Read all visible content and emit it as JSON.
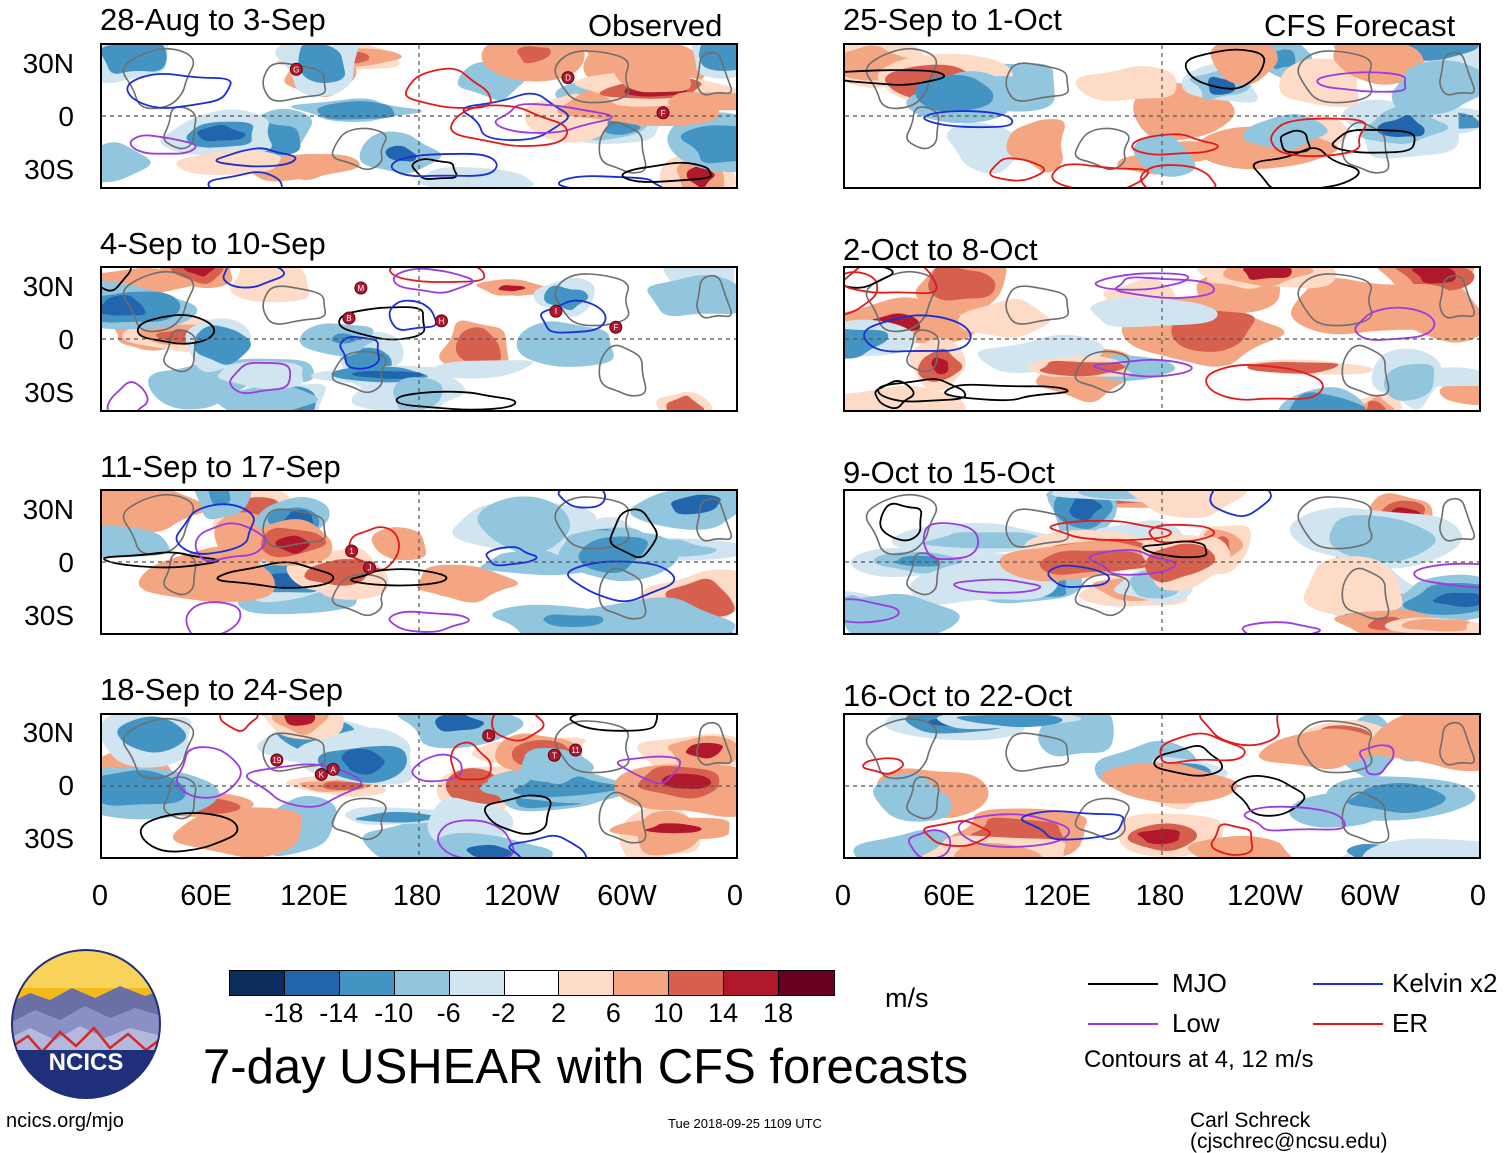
{
  "observed_label": "Observed",
  "forecast_label": "CFS Forecast",
  "observed_panels": [
    {
      "title": "28-Aug to 3-Sep",
      "storms": [
        "D",
        "G",
        "F"
      ]
    },
    {
      "title": "4-Sep to 10-Sep",
      "storms": [
        "B",
        "M",
        "F",
        "I",
        "H"
      ]
    },
    {
      "title": "11-Sep to 17-Sep",
      "storms": [
        "1",
        "J"
      ]
    },
    {
      "title": "18-Sep to 24-Sep",
      "storms": [
        "A",
        "T",
        "19",
        "11",
        "K",
        "L"
      ]
    }
  ],
  "forecast_panels": [
    {
      "title": "25-Sep to 1-Oct"
    },
    {
      "title": "2-Oct to 8-Oct"
    },
    {
      "title": "9-Oct to 15-Oct"
    },
    {
      "title": "16-Oct to 22-Oct"
    }
  ],
  "lat_labels": [
    "30N",
    "0",
    "30S"
  ],
  "lon_labels": [
    "0",
    "60E",
    "120E",
    "180",
    "120W",
    "60W",
    "0"
  ],
  "colorbar": {
    "colors": [
      "#0b2d5e",
      "#2166ac",
      "#4393c3",
      "#92c5de",
      "#d1e5f0",
      "#ffffff",
      "#fddbc7",
      "#f4a582",
      "#d6604d",
      "#b2182b",
      "#67001f"
    ],
    "labels": [
      "-18",
      "-14",
      "-10",
      "-6",
      "-2",
      "2",
      "6",
      "10",
      "14",
      "18"
    ],
    "units": "m/s"
  },
  "legend": {
    "items": [
      {
        "label": "MJO",
        "color": "#000000"
      },
      {
        "label": "Kelvin x2",
        "color": "#1a2fd6"
      },
      {
        "label": "Low",
        "color": "#9a3ce0"
      },
      {
        "label": "ER",
        "color": "#e31a1c"
      }
    ],
    "contours_note": "Contours at 4, 12 m/s"
  },
  "logo_text": "NCICS",
  "main_title": "7-day USHEAR with CFS forecasts",
  "footer": {
    "url": "ncics.org/mjo",
    "timestamp": "Tue 2018-09-25 1109 UTC",
    "credit": "Carl Schreck (cjschrec@ncsu.edu)"
  }
}
